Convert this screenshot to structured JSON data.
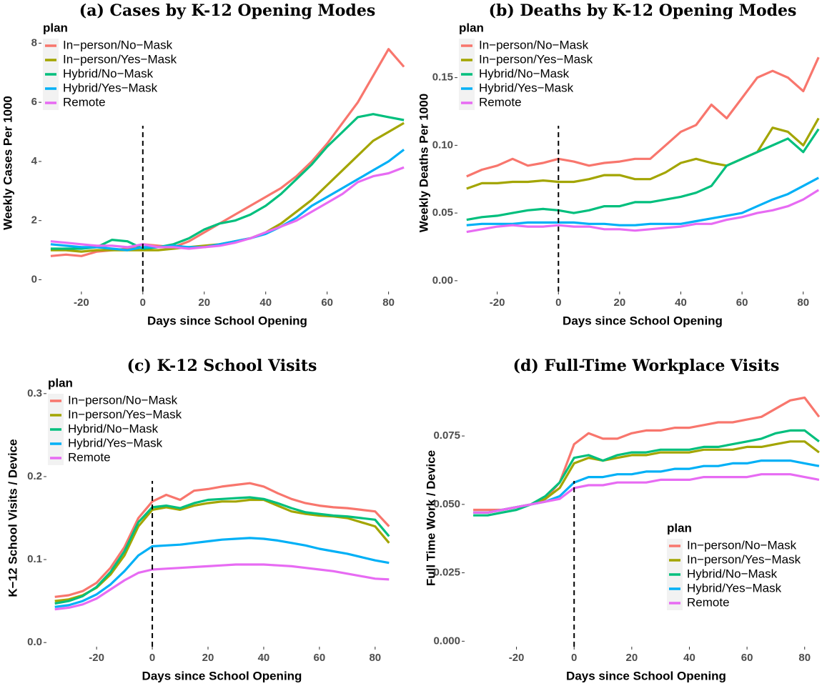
{
  "chart_data": [
    {
      "type": "line",
      "title": "(a) Cases by K-12 Opening Modes",
      "xlabel": "Days since School Opening",
      "ylabel": "Weekly Cases Per 1000",
      "legend_title": "plan",
      "legend": "top-left",
      "vline": 0,
      "grid": false,
      "xlim": [
        -33,
        88
      ],
      "xticks": [
        -20,
        0,
        20,
        40,
        60,
        80
      ],
      "ylim": [
        -0.4,
        8.3
      ],
      "yticks": [
        0,
        2,
        4,
        6,
        8
      ],
      "x": [
        -30,
        -25,
        -20,
        -15,
        -10,
        -5,
        0,
        5,
        10,
        15,
        20,
        25,
        30,
        35,
        40,
        45,
        50,
        55,
        60,
        65,
        70,
        75,
        80,
        85
      ],
      "series": [
        {
          "name": "In−person/No−Mask",
          "color": "#F8766D",
          "values": [
            0.8,
            0.85,
            0.8,
            0.95,
            1.0,
            1.05,
            1.2,
            1.15,
            1.1,
            1.3,
            1.6,
            1.9,
            2.2,
            2.5,
            2.8,
            3.1,
            3.5,
            4.0,
            4.6,
            5.3,
            6.0,
            6.9,
            7.8,
            7.2
          ]
        },
        {
          "name": "In−person/Yes−Mask",
          "color": "#A3A500",
          "values": [
            1.0,
            1.0,
            0.95,
            1.0,
            1.0,
            1.0,
            1.0,
            1.0,
            1.05,
            1.1,
            1.15,
            1.2,
            1.3,
            1.4,
            1.6,
            1.9,
            2.3,
            2.7,
            3.2,
            3.7,
            4.2,
            4.7,
            5.0,
            5.3
          ]
        },
        {
          "name": "Hybrid/No−Mask",
          "color": "#00BF7D",
          "values": [
            1.05,
            1.05,
            1.05,
            1.1,
            1.35,
            1.3,
            1.05,
            1.1,
            1.2,
            1.4,
            1.7,
            1.9,
            2.0,
            2.2,
            2.5,
            2.9,
            3.4,
            3.9,
            4.5,
            5.0,
            5.5,
            5.6,
            5.5,
            5.4
          ]
        },
        {
          "name": "Hybrid/Yes−Mask",
          "color": "#00B0F6",
          "values": [
            1.2,
            1.15,
            1.1,
            1.1,
            1.05,
            1.0,
            1.1,
            1.1,
            1.15,
            1.1,
            1.1,
            1.2,
            1.3,
            1.4,
            1.55,
            1.8,
            2.1,
            2.5,
            2.8,
            3.1,
            3.4,
            3.7,
            4.0,
            4.4
          ]
        },
        {
          "name": "Remote",
          "color": "#E76BF3",
          "values": [
            1.3,
            1.25,
            1.2,
            1.15,
            1.15,
            1.1,
            1.2,
            1.1,
            1.1,
            1.05,
            1.1,
            1.15,
            1.25,
            1.4,
            1.6,
            1.8,
            2.0,
            2.3,
            2.6,
            2.9,
            3.3,
            3.5,
            3.6,
            3.8
          ]
        }
      ]
    },
    {
      "type": "line",
      "title": "(b) Deaths by K-12 Opening Modes",
      "xlabel": "Days since School Opening",
      "ylabel": "Weekly Deaths Per 1000",
      "legend_title": "plan",
      "legend": "top-left",
      "vline": 0,
      "grid": false,
      "xlim": [
        -33,
        88
      ],
      "xticks": [
        -20,
        0,
        20,
        40,
        60,
        80
      ],
      "ylim": [
        -0.008,
        0.182
      ],
      "yticks": [
        {
          "value": 0,
          "label": "0.00"
        },
        {
          "value": 0.05,
          "label": "0.05"
        },
        {
          "value": 0.1,
          "label": "0.10"
        },
        {
          "value": 0.15,
          "label": "0.15"
        }
      ],
      "x": [
        -30,
        -25,
        -20,
        -15,
        -10,
        -5,
        0,
        5,
        10,
        15,
        20,
        25,
        30,
        35,
        40,
        45,
        50,
        55,
        60,
        65,
        70,
        75,
        80,
        85
      ],
      "series": [
        {
          "name": "In−person/No−Mask",
          "color": "#F8766D",
          "values": [
            0.077,
            0.082,
            0.085,
            0.09,
            0.085,
            0.087,
            0.09,
            0.088,
            0.085,
            0.087,
            0.088,
            0.09,
            0.09,
            0.1,
            0.11,
            0.115,
            0.13,
            0.12,
            0.135,
            0.15,
            0.155,
            0.15,
            0.14,
            0.165
          ]
        },
        {
          "name": "In−person/Yes−Mask",
          "color": "#A3A500",
          "values": [
            0.068,
            0.072,
            0.072,
            0.073,
            0.073,
            0.074,
            0.073,
            0.073,
            0.075,
            0.078,
            0.078,
            0.075,
            0.075,
            0.08,
            0.087,
            0.09,
            0.087,
            0.085,
            0.09,
            0.095,
            0.113,
            0.11,
            0.1,
            0.12
          ]
        },
        {
          "name": "Hybrid/No−Mask",
          "color": "#00BF7D",
          "values": [
            0.045,
            0.047,
            0.048,
            0.05,
            0.052,
            0.053,
            0.052,
            0.05,
            0.052,
            0.055,
            0.055,
            0.058,
            0.058,
            0.06,
            0.062,
            0.065,
            0.07,
            0.085,
            0.09,
            0.095,
            0.1,
            0.105,
            0.095,
            0.112
          ]
        },
        {
          "name": "Hybrid/Yes−Mask",
          "color": "#00B0F6",
          "values": [
            0.041,
            0.042,
            0.042,
            0.042,
            0.043,
            0.043,
            0.043,
            0.043,
            0.042,
            0.042,
            0.041,
            0.041,
            0.042,
            0.042,
            0.042,
            0.044,
            0.046,
            0.048,
            0.05,
            0.055,
            0.06,
            0.064,
            0.07,
            0.076
          ]
        },
        {
          "name": "Remote",
          "color": "#E76BF3",
          "values": [
            0.036,
            0.038,
            0.04,
            0.041,
            0.04,
            0.04,
            0.041,
            0.04,
            0.04,
            0.038,
            0.038,
            0.037,
            0.038,
            0.039,
            0.04,
            0.042,
            0.042,
            0.045,
            0.047,
            0.05,
            0.052,
            0.055,
            0.06,
            0.067
          ]
        }
      ]
    },
    {
      "type": "line",
      "title": "(c) K-12 School Visits",
      "xlabel": "Days since School Opening",
      "ylabel": "K−12 School Visits / Device",
      "legend_title": "plan",
      "legend": "top-left",
      "vline": 0,
      "grid": false,
      "xlim": [
        -38,
        88
      ],
      "xticks": [
        -20,
        0,
        20,
        40,
        60,
        80
      ],
      "ylim": [
        -0.005,
        0.305
      ],
      "yticks": [
        {
          "value": 0,
          "label": "0.0"
        },
        {
          "value": 0.1,
          "label": "0.1"
        },
        {
          "value": 0.2,
          "label": "0.2"
        },
        {
          "value": 0.3,
          "label": "0.3"
        }
      ],
      "x": [
        -35,
        -30,
        -25,
        -20,
        -15,
        -10,
        -5,
        0,
        5,
        10,
        15,
        20,
        25,
        30,
        35,
        40,
        45,
        50,
        55,
        60,
        65,
        70,
        75,
        80,
        85
      ],
      "series": [
        {
          "name": "In−person/No−Mask",
          "color": "#F8766D",
          "values": [
            0.055,
            0.057,
            0.062,
            0.072,
            0.09,
            0.115,
            0.15,
            0.17,
            0.178,
            0.172,
            0.183,
            0.185,
            0.188,
            0.19,
            0.192,
            0.188,
            0.18,
            0.173,
            0.168,
            0.165,
            0.163,
            0.162,
            0.16,
            0.158,
            0.14
          ]
        },
        {
          "name": "In−person/Yes−Mask",
          "color": "#A3A500",
          "values": [
            0.05,
            0.052,
            0.057,
            0.066,
            0.082,
            0.105,
            0.14,
            0.16,
            0.163,
            0.16,
            0.165,
            0.168,
            0.17,
            0.17,
            0.172,
            0.172,
            0.165,
            0.158,
            0.155,
            0.153,
            0.152,
            0.15,
            0.145,
            0.14,
            0.12
          ]
        },
        {
          "name": "Hybrid/No−Mask",
          "color": "#00BF7D",
          "values": [
            0.047,
            0.05,
            0.056,
            0.067,
            0.085,
            0.11,
            0.145,
            0.163,
            0.165,
            0.162,
            0.168,
            0.172,
            0.173,
            0.174,
            0.175,
            0.173,
            0.168,
            0.162,
            0.157,
            0.155,
            0.153,
            0.152,
            0.15,
            0.148,
            0.128
          ]
        },
        {
          "name": "Hybrid/Yes−Mask",
          "color": "#00B0F6",
          "values": [
            0.043,
            0.045,
            0.05,
            0.058,
            0.07,
            0.086,
            0.105,
            0.116,
            0.117,
            0.118,
            0.12,
            0.122,
            0.124,
            0.125,
            0.126,
            0.125,
            0.123,
            0.12,
            0.117,
            0.113,
            0.11,
            0.107,
            0.103,
            0.099,
            0.096
          ]
        },
        {
          "name": "Remote",
          "color": "#E76BF3",
          "values": [
            0.04,
            0.042,
            0.046,
            0.053,
            0.064,
            0.075,
            0.084,
            0.088,
            0.089,
            0.09,
            0.091,
            0.092,
            0.093,
            0.094,
            0.094,
            0.094,
            0.093,
            0.092,
            0.09,
            0.088,
            0.086,
            0.083,
            0.08,
            0.077,
            0.076
          ]
        }
      ]
    },
    {
      "type": "line",
      "title": "(d) Full-Time Workplace Visits",
      "xlabel": "Days since School Opening",
      "ylabel": "Full Time Work / Device",
      "legend_title": "plan",
      "legend": "right",
      "vline": 0,
      "grid": false,
      "xlim": [
        -38,
        88
      ],
      "xticks": [
        -20,
        0,
        20,
        40,
        60,
        80
      ],
      "ylim": [
        -0.002,
        0.092
      ],
      "yticks": [
        {
          "value": 0,
          "label": "0.000"
        },
        {
          "value": 0.025,
          "label": "0.025"
        },
        {
          "value": 0.05,
          "label": "0.050"
        },
        {
          "value": 0.075,
          "label": "0.075"
        }
      ],
      "x": [
        -35,
        -30,
        -25,
        -20,
        -15,
        -10,
        -5,
        0,
        5,
        10,
        15,
        20,
        25,
        30,
        35,
        40,
        45,
        50,
        55,
        60,
        65,
        70,
        75,
        80,
        85
      ],
      "series": [
        {
          "name": "In−person/No−Mask",
          "color": "#F8766D",
          "values": [
            0.048,
            0.048,
            0.048,
            0.049,
            0.05,
            0.052,
            0.058,
            0.072,
            0.076,
            0.074,
            0.074,
            0.076,
            0.077,
            0.077,
            0.078,
            0.078,
            0.079,
            0.08,
            0.08,
            0.081,
            0.082,
            0.085,
            0.088,
            0.089,
            0.082
          ]
        },
        {
          "name": "In−person/Yes−Mask",
          "color": "#A3A500",
          "values": [
            0.047,
            0.047,
            0.048,
            0.049,
            0.05,
            0.052,
            0.056,
            0.065,
            0.067,
            0.066,
            0.067,
            0.068,
            0.068,
            0.069,
            0.069,
            0.069,
            0.07,
            0.07,
            0.07,
            0.071,
            0.071,
            0.072,
            0.073,
            0.073,
            0.069
          ]
        },
        {
          "name": "Hybrid/No−Mask",
          "color": "#00BF7D",
          "values": [
            0.046,
            0.046,
            0.047,
            0.048,
            0.05,
            0.053,
            0.058,
            0.067,
            0.068,
            0.066,
            0.068,
            0.069,
            0.069,
            0.07,
            0.07,
            0.07,
            0.071,
            0.071,
            0.072,
            0.073,
            0.074,
            0.076,
            0.077,
            0.077,
            0.073
          ]
        },
        {
          "name": "Hybrid/Yes−Mask",
          "color": "#00B0F6",
          "values": [
            0.047,
            0.047,
            0.048,
            0.049,
            0.05,
            0.051,
            0.053,
            0.058,
            0.06,
            0.06,
            0.061,
            0.061,
            0.062,
            0.062,
            0.063,
            0.063,
            0.064,
            0.064,
            0.065,
            0.065,
            0.066,
            0.066,
            0.066,
            0.065,
            0.064
          ]
        },
        {
          "name": "Remote",
          "color": "#E76BF3",
          "values": [
            0.047,
            0.047,
            0.048,
            0.049,
            0.05,
            0.051,
            0.052,
            0.056,
            0.057,
            0.057,
            0.058,
            0.058,
            0.058,
            0.059,
            0.059,
            0.059,
            0.06,
            0.06,
            0.06,
            0.06,
            0.061,
            0.061,
            0.061,
            0.06,
            0.059
          ]
        }
      ]
    }
  ]
}
